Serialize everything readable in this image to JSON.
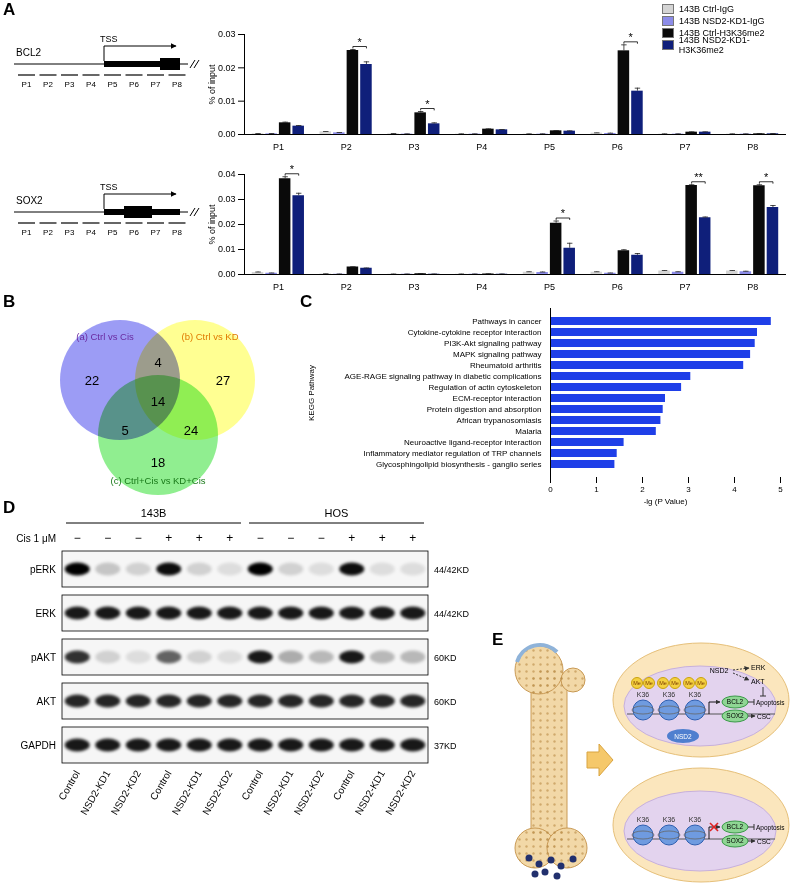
{
  "panel_labels": [
    "A",
    "B",
    "C",
    "D",
    "E"
  ],
  "gene_diagrams": [
    {
      "gene": "BCL2",
      "tss_label": "TSS",
      "probes": [
        "P1",
        "P2",
        "P3",
        "P4",
        "P5",
        "P6",
        "P7",
        "P8"
      ]
    },
    {
      "gene": "SOX2",
      "tss_label": "TSS",
      "probes": [
        "P1",
        "P2",
        "P3",
        "P4",
        "P5",
        "P6",
        "P7",
        "P8"
      ]
    }
  ],
  "chart_data": [
    {
      "type": "bar",
      "y_label": "% of input",
      "legend": "top-right",
      "categories": [
        "P1",
        "P2",
        "P3",
        "P4",
        "P5",
        "P6",
        "P7",
        "P8"
      ],
      "series": [
        {
          "name": "143B Ctrl-IgG",
          "color": "#d4d4d4",
          "values": [
            0.0002,
            0.0008,
            0.0002,
            0.0001,
            0.0001,
            0.0004,
            0.0001,
            0.0001
          ],
          "errors": [
            0.0001,
            0.0001,
            0.0001,
            0.0001,
            0.0001,
            0.0001,
            0.0001,
            0.0001
          ]
        },
        {
          "name": "143B NSD2-KD1-IgG",
          "color": "#8c8ce8",
          "values": [
            0.0002,
            0.0005,
            0.0001,
            0.0001,
            0.0001,
            0.0003,
            0.0001,
            0.0001
          ],
          "errors": [
            0.0001,
            0.0001,
            0.0001,
            0.0001,
            0.0001,
            0.0001,
            0.0001,
            0.0001
          ]
        },
        {
          "name": "143B Ctrl-H3K36me2",
          "color": "#0a0a0a",
          "values": [
            0.0035,
            0.0252,
            0.0065,
            0.0016,
            0.0011,
            0.0251,
            0.0007,
            0.0002
          ],
          "errors": [
            0.0002,
            0.0003,
            0.0004,
            0.0001,
            0.0001,
            0.0018,
            0.0001,
            0.0001
          ]
        },
        {
          "name": "143B NSD2-KD1-H3K36me2",
          "color": "#0f1f7a",
          "values": [
            0.0025,
            0.021,
            0.0032,
            0.0014,
            0.001,
            0.013,
            0.0007,
            0.0002
          ],
          "errors": [
            0.0002,
            0.0008,
            0.0003,
            0.0001,
            0.0001,
            0.0009,
            0.0001,
            0.0001
          ]
        }
      ],
      "ylim": [
        0,
        0.03
      ],
      "yticks": [
        {
          "value": 0,
          "label": "0.00"
        },
        {
          "value": 0.01,
          "label": "0.01"
        },
        {
          "value": 0.02,
          "label": "0.02"
        },
        {
          "value": 0.03,
          "label": "0.03"
        }
      ],
      "significance": [
        {
          "category": "P2",
          "label": "*"
        },
        {
          "category": "P3",
          "label": "*"
        },
        {
          "category": "P6",
          "label": "*"
        }
      ]
    },
    {
      "type": "bar",
      "y_label": "% of input",
      "categories": [
        "P1",
        "P2",
        "P3",
        "P4",
        "P5",
        "P6",
        "P7",
        "P8"
      ],
      "series": [
        {
          "name": "143B Ctrl-IgG",
          "color": "#d4d4d4",
          "values": [
            0.0008,
            0.0002,
            0.0001,
            0.0001,
            0.0009,
            0.0009,
            0.0014,
            0.0014
          ],
          "errors": [
            0.0002,
            0.0001,
            0.0001,
            0.0001,
            0.0002,
            0.0002,
            0.0002,
            0.0002
          ]
        },
        {
          "name": "143B NSD2-KD1-IgG",
          "color": "#8c8ce8",
          "values": [
            0.0005,
            0.0001,
            0.0001,
            0.0001,
            0.0008,
            0.0005,
            0.0009,
            0.0011
          ],
          "errors": [
            0.0001,
            0.0001,
            0.0001,
            0.0001,
            0.0002,
            0.0001,
            0.0002,
            0.0002
          ]
        },
        {
          "name": "143B Ctrl-H3K36me2",
          "color": "#0a0a0a",
          "values": [
            0.0383,
            0.003,
            0.0003,
            0.0002,
            0.0205,
            0.0095,
            0.0356,
            0.0355
          ],
          "errors": [
            0.0008,
            0.0001,
            0.0001,
            0.0001,
            0.0009,
            0.0004,
            0.0003,
            0.0004
          ]
        },
        {
          "name": "143B NSD2-KD1-H3K36me2",
          "color": "#0f1f7a",
          "values": [
            0.0315,
            0.0025,
            0.0001,
            0.0001,
            0.0105,
            0.0077,
            0.0227,
            0.0268
          ],
          "errors": [
            0.001,
            0.0001,
            0.0001,
            0.0001,
            0.002,
            0.0007,
            0.0003,
            0.0008
          ]
        }
      ],
      "ylim": [
        0,
        0.04
      ],
      "yticks": [
        {
          "value": 0,
          "label": "0.00"
        },
        {
          "value": 0.01,
          "label": "0.01"
        },
        {
          "value": 0.02,
          "label": "0.02"
        },
        {
          "value": 0.03,
          "label": "0.03"
        },
        {
          "value": 0.04,
          "label": "0.04"
        }
      ],
      "significance": [
        {
          "category": "P1",
          "label": "*"
        },
        {
          "category": "P5",
          "label": "*"
        },
        {
          "category": "P7",
          "label": "**"
        },
        {
          "category": "P8",
          "label": "*"
        }
      ]
    },
    {
      "type": "bar",
      "orientation": "horizontal",
      "x_label": "-lg (P Value)",
      "y_label": "KEGG Pathway",
      "color": "#1f3fe8",
      "categories": [
        "Pathways in cancer",
        "Cytokine-cytokine receptor interaction",
        "PI3K-Akt signaling pathway",
        "MAPK signaling pathway",
        "Rheumatoid arthritis",
        "AGE-RAGE signaling pathway in diabetic complications",
        "Regulation of actin cytoskeleton",
        "ECM-receptor interaction",
        "Protein digestion and absorption",
        "African trypanosomiasis",
        "Malaria",
        "Neuroactive ligand-receptor interaction",
        "Inflammatory mediator regulation of TRP channels",
        "Glycosphingolipid biosynthesis - ganglio series"
      ],
      "values": [
        4.8,
        4.5,
        4.45,
        4.35,
        4.2,
        3.05,
        2.85,
        2.5,
        2.45,
        2.4,
        2.3,
        1.6,
        1.45,
        1.4
      ],
      "xlim": [
        0,
        5
      ],
      "xticks": [
        0,
        1,
        2,
        3,
        4,
        5
      ]
    }
  ],
  "venn": {
    "sets": [
      {
        "key": "a",
        "label": "(a) Ctrl vs Cis",
        "color": "#7b7bf2",
        "text_color": "#6a2aa0"
      },
      {
        "key": "b",
        "label": "(b) Ctrl vs KD",
        "color": "#ffff6e",
        "text_color": "#e07a00"
      },
      {
        "key": "c",
        "label": "(c) Ctrl+Cis vs KD+Cis",
        "color": "#6be86b",
        "text_color": "#1a7a1a"
      }
    ],
    "regions": {
      "a": 22,
      "b": 27,
      "c": 18,
      "ab": 4,
      "ac": 5,
      "bc": 24,
      "abc": 14
    }
  },
  "western_blot": {
    "cell_lines": [
      "143B",
      "HOS"
    ],
    "treatment_label": "Cis 1 μM",
    "treatment": [
      "−",
      "−",
      "−",
      "+",
      "+",
      "+",
      "−",
      "−",
      "−",
      "+",
      "+",
      "+"
    ],
    "lanes": [
      "Control",
      "NSD2-KD1",
      "NSD2-KD2",
      "Control",
      "NSD2-KD1",
      "NSD2-KD2",
      "Control",
      "NSD2-KD1",
      "NSD2-KD2",
      "Control",
      "NSD2-KD1",
      "NSD2-KD2"
    ],
    "rows": [
      {
        "protein": "pERK",
        "size": "44/42KD",
        "intensity": [
          1,
          0.2,
          0.15,
          0.95,
          0.15,
          0.1,
          1,
          0.15,
          0.1,
          0.95,
          0.1,
          0.1
        ]
      },
      {
        "protein": "ERK",
        "size": "44/42KD",
        "intensity": [
          0.9,
          0.9,
          0.9,
          0.9,
          0.9,
          0.9,
          0.9,
          0.9,
          0.9,
          0.9,
          0.9,
          0.9
        ]
      },
      {
        "protein": "pAKT",
        "size": "60KD",
        "intensity": [
          0.8,
          0.15,
          0.1,
          0.6,
          0.15,
          0.1,
          0.9,
          0.3,
          0.25,
          0.9,
          0.25,
          0.25
        ]
      },
      {
        "protein": "AKT",
        "size": "60KD",
        "intensity": [
          0.85,
          0.85,
          0.85,
          0.85,
          0.85,
          0.85,
          0.85,
          0.85,
          0.85,
          0.85,
          0.85,
          0.85
        ]
      },
      {
        "protein": "GAPDH",
        "size": "37KD",
        "intensity": [
          0.9,
          0.9,
          0.9,
          0.9,
          0.9,
          0.9,
          0.9,
          0.9,
          0.9,
          0.9,
          0.9,
          0.9
        ]
      }
    ]
  },
  "schematic": {
    "top_cell": {
      "methyl": "Me",
      "histone_mark": "K36",
      "writer": "NSD2",
      "kinases": [
        "ERK",
        "AKT"
      ],
      "genes": [
        "BCL2",
        "SOX2"
      ],
      "outcomes": [
        "Apoptosis",
        "CSC"
      ]
    },
    "bottom_cell": {
      "histone_mark": "K36",
      "genes": [
        "BCL2",
        "SOX2"
      ],
      "outcomes": [
        "Apoptosis",
        "CSC"
      ]
    }
  }
}
